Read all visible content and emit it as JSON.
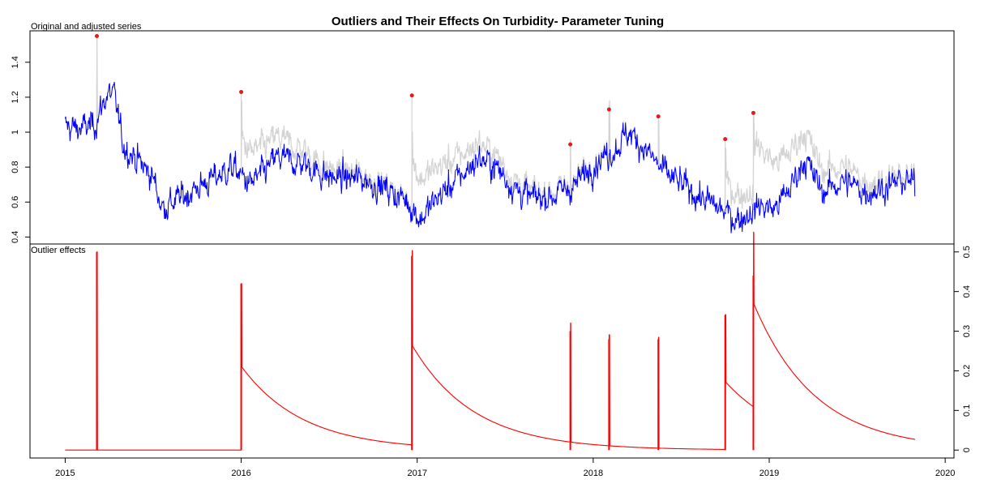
{
  "title": "Outliers and Their Effects On Turbidity- Parameter Tuning",
  "chart_data": {
    "type": "line",
    "panels": [
      {
        "label": "Original and adjusted series",
        "ylim": [
          0.36,
          1.58
        ],
        "yticks": [
          "0.4",
          "0.6",
          "0.8",
          "1",
          "1.2",
          "1.4"
        ],
        "series": [
          {
            "color": "#d3d3d3"
          },
          {
            "color": "#0000ff"
          }
        ],
        "outlier_points": [
          {
            "x": 2015.18,
            "y": 1.55
          },
          {
            "x": 2016.0,
            "y": 1.23
          },
          {
            "x": 2016.97,
            "y": 1.21
          },
          {
            "x": 2017.87,
            "y": 0.93
          },
          {
            "x": 2018.09,
            "y": 1.13
          },
          {
            "x": 2018.37,
            "y": 1.09
          },
          {
            "x": 2018.75,
            "y": 0.96
          },
          {
            "x": 2018.91,
            "y": 1.11
          }
        ],
        "outlier_color": "#e41a1c"
      },
      {
        "label": "Outlier effects",
        "ylim": [
          -0.02,
          0.52
        ],
        "yticks": [
          "0",
          "0.1",
          "0.2",
          "0.3",
          "0.4",
          "0.5"
        ],
        "color": "#ff0000",
        "effects": [
          {
            "x": 2015.18,
            "peak": 0.5,
            "type": "AO"
          },
          {
            "x": 2016.0,
            "peak": 0.42,
            "type": "TC",
            "level": 0.21
          },
          {
            "x": 2016.97,
            "peak": 0.49,
            "type": "TC",
            "level": 0.25
          },
          {
            "x": 2017.87,
            "peak": 0.3,
            "type": "AO"
          },
          {
            "x": 2018.09,
            "peak": 0.28,
            "type": "AO"
          },
          {
            "x": 2018.37,
            "peak": 0.28,
            "type": "AO"
          },
          {
            "x": 2018.75,
            "peak": 0.34,
            "type": "TC",
            "level": 0.17
          },
          {
            "x": 2018.91,
            "peak": 0.44,
            "type": "TC",
            "level": 0.26
          }
        ]
      }
    ],
    "xlim": [
      2014.8,
      2020.05
    ],
    "xticks": [
      "2015",
      "2016",
      "2017",
      "2018",
      "2019",
      "2020"
    ],
    "x_end": 2019.83
  }
}
